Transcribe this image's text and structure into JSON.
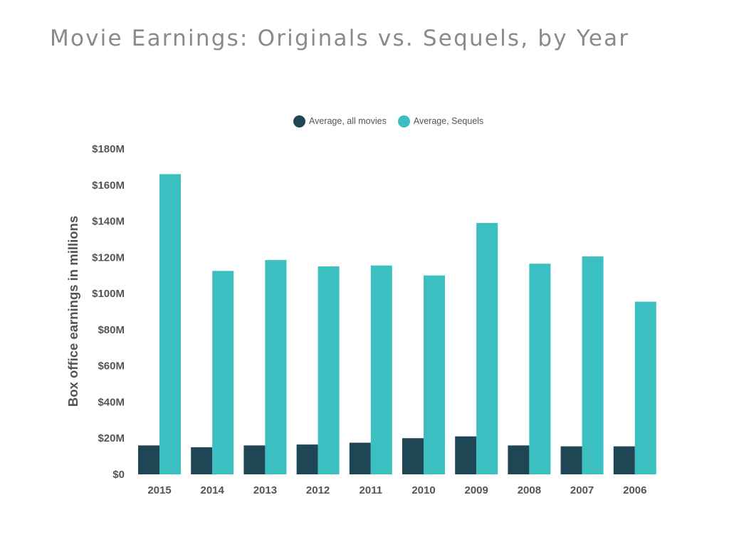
{
  "chart_data": {
    "type": "bar",
    "title": "Movie Earnings: Originals vs. Sequels, by Year",
    "ylabel": "Box office earnings in millions",
    "xlabel": "",
    "categories": [
      "2015",
      "2014",
      "2013",
      "2012",
      "2011",
      "2010",
      "2009",
      "2008",
      "2007",
      "2006"
    ],
    "series": [
      {
        "name": "Average, all movies",
        "color": "#1f4655",
        "values": [
          16,
          15,
          16,
          16.5,
          17.5,
          20,
          21,
          16,
          15.5,
          15.5
        ]
      },
      {
        "name": "Average, Sequels",
        "color": "#3bbfc1",
        "values": [
          166,
          112.5,
          118.5,
          115,
          115.5,
          110,
          139,
          116.5,
          120.5,
          95.5
        ]
      }
    ],
    "ylim": [
      0,
      180
    ],
    "yticks": [
      0,
      20,
      40,
      60,
      80,
      100,
      120,
      140,
      160,
      180
    ],
    "ytick_labels": [
      "$0",
      "$20M",
      "$40M",
      "$60M",
      "$80M",
      "$100M",
      "$120M",
      "$140M",
      "$160M",
      "$180M"
    ],
    "grid": false,
    "legend_position": "top-center"
  }
}
